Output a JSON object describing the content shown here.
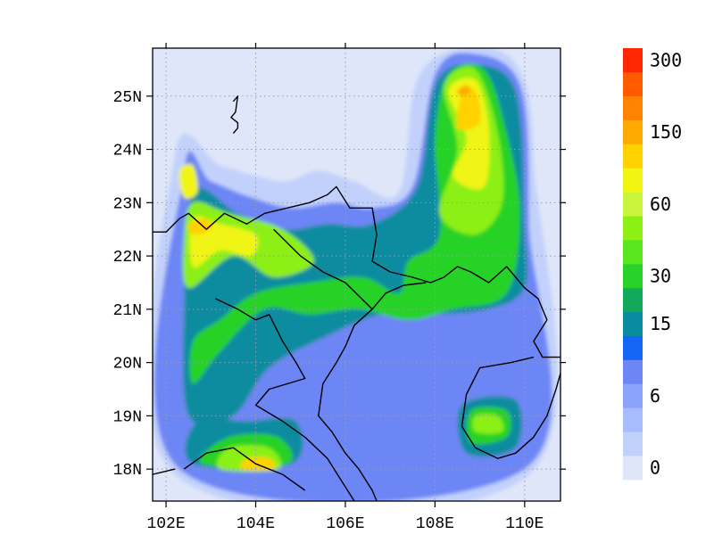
{
  "chart_data": {
    "type": "heatmap",
    "title": "",
    "xlabel": "",
    "ylabel": "",
    "xlim": [
      101.7,
      110.8
    ],
    "ylim": [
      17.4,
      25.9
    ],
    "x_ticks": [
      {
        "value": 102,
        "label": "102E"
      },
      {
        "value": 104,
        "label": "104E"
      },
      {
        "value": 106,
        "label": "106E"
      },
      {
        "value": 108,
        "label": "108E"
      },
      {
        "value": 110,
        "label": "110E"
      }
    ],
    "y_ticks": [
      {
        "value": 18,
        "label": "18N"
      },
      {
        "value": 19,
        "label": "19N"
      },
      {
        "value": 20,
        "label": "20N"
      },
      {
        "value": 21,
        "label": "21N"
      },
      {
        "value": 22,
        "label": "22N"
      },
      {
        "value": 23,
        "label": "23N"
      },
      {
        "value": 24,
        "label": "24N"
      },
      {
        "value": 25,
        "label": "25N"
      }
    ],
    "grid": "dotted",
    "legend": "right",
    "colorbar": {
      "colors": [
        "#dfe6f9",
        "#c2d1fb",
        "#a6bcfc",
        "#8ba4fb",
        "#6d86f5",
        "#1464f5",
        "#0a8ca0",
        "#12aa5a",
        "#28d228",
        "#5ae61e",
        "#8cf014",
        "#c8f53c",
        "#f0f514",
        "#ffd200",
        "#ffaa00",
        "#ff8200",
        "#ff5a00",
        "#ff2800"
      ],
      "labels": [
        {
          "index": 0,
          "text": "0"
        },
        {
          "index": 3,
          "text": "6"
        },
        {
          "index": 6,
          "text": "15"
        },
        {
          "index": 8,
          "text": "30"
        },
        {
          "index": 11,
          "text": "60"
        },
        {
          "index": 14,
          "text": "150"
        },
        {
          "index": 17,
          "text": "300"
        }
      ]
    },
    "background_color": "#dfe6f9",
    "regions": [
      {
        "level": 1,
        "points": [
          [
            102.2,
            17.9
          ],
          [
            110.1,
            17.9
          ],
          [
            110.2,
            23.8
          ],
          [
            109.8,
            25.6
          ],
          [
            108.6,
            25.9
          ],
          [
            107.6,
            25.3
          ],
          [
            107.2,
            23.2
          ],
          [
            106.2,
            23.4
          ],
          [
            105.4,
            23.6
          ],
          [
            104.7,
            23.4
          ],
          [
            104.0,
            23.5
          ],
          [
            103.2,
            23.7
          ],
          [
            102.2,
            23.9
          ]
        ]
      },
      {
        "level": 4,
        "points": [
          [
            102.3,
            18.0
          ],
          [
            110.0,
            18.0
          ],
          [
            110.1,
            22.6
          ],
          [
            109.9,
            25.2
          ],
          [
            108.8,
            25.8
          ],
          [
            108.0,
            25.4
          ],
          [
            107.5,
            23.3
          ],
          [
            106.6,
            22.9
          ],
          [
            105.8,
            23.0
          ],
          [
            104.8,
            22.9
          ],
          [
            103.9,
            23.1
          ],
          [
            103.0,
            23.4
          ],
          [
            102.4,
            23.6
          ]
        ]
      },
      {
        "level": 6,
        "points": [
          [
            102.5,
            19.0
          ],
          [
            103.5,
            19.0
          ],
          [
            104.3,
            19.9
          ],
          [
            105.6,
            20.5
          ],
          [
            106.8,
            20.9
          ],
          [
            107.9,
            20.9
          ],
          [
            109.2,
            21.0
          ],
          [
            110.0,
            21.4
          ],
          [
            110.0,
            22.6
          ],
          [
            109.8,
            25.1
          ],
          [
            108.8,
            25.6
          ],
          [
            108.0,
            25.2
          ],
          [
            107.6,
            23.3
          ],
          [
            106.6,
            22.6
          ],
          [
            105.6,
            22.6
          ],
          [
            104.6,
            22.5
          ],
          [
            103.6,
            22.8
          ],
          [
            102.6,
            23.2
          ],
          [
            102.4,
            21.0
          ]
        ]
      },
      {
        "level": 6,
        "points": [
          [
            102.6,
            18.1
          ],
          [
            104.8,
            18.1
          ],
          [
            104.9,
            18.9
          ],
          [
            103.8,
            18.9
          ],
          [
            102.7,
            18.9
          ]
        ]
      },
      {
        "level": 6,
        "points": [
          [
            108.7,
            18.3
          ],
          [
            109.8,
            18.4
          ],
          [
            109.8,
            19.3
          ],
          [
            108.6,
            19.2
          ]
        ]
      },
      {
        "level": 8,
        "points": [
          [
            102.6,
            20.4
          ],
          [
            103.2,
            20.8
          ],
          [
            104.0,
            21.3
          ],
          [
            105.2,
            21.5
          ],
          [
            106.4,
            21.6
          ],
          [
            107.2,
            21.3
          ],
          [
            107.4,
            21.9
          ],
          [
            108.1,
            22.4
          ],
          [
            108.0,
            24.2
          ],
          [
            108.3,
            25.4
          ],
          [
            109.1,
            25.5
          ],
          [
            109.6,
            24.3
          ],
          [
            109.9,
            22.8
          ],
          [
            109.6,
            21.3
          ],
          [
            108.4,
            21.0
          ],
          [
            107.4,
            20.8
          ],
          [
            106.3,
            21.0
          ],
          [
            105.2,
            20.9
          ],
          [
            104.2,
            21.0
          ],
          [
            103.2,
            20.2
          ],
          [
            102.6,
            19.6
          ]
        ]
      },
      {
        "level": 8,
        "points": [
          [
            102.8,
            18.1
          ],
          [
            104.7,
            18.1
          ],
          [
            104.5,
            18.6
          ],
          [
            103.4,
            18.6
          ]
        ]
      },
      {
        "level": 8,
        "points": [
          [
            108.8,
            18.5
          ],
          [
            109.6,
            18.6
          ],
          [
            109.6,
            19.1
          ],
          [
            108.8,
            19.1
          ]
        ]
      },
      {
        "level": 10,
        "points": [
          [
            102.5,
            21.4
          ],
          [
            103.5,
            22.0
          ],
          [
            104.4,
            21.6
          ],
          [
            105.3,
            21.9
          ],
          [
            104.6,
            22.5
          ],
          [
            103.4,
            22.8
          ],
          [
            102.6,
            23.0
          ],
          [
            102.4,
            22.3
          ]
        ]
      },
      {
        "level": 10,
        "points": [
          [
            108.1,
            22.8
          ],
          [
            108.5,
            24.0
          ],
          [
            108.2,
            25.2
          ],
          [
            108.9,
            25.5
          ],
          [
            109.4,
            24.3
          ],
          [
            109.5,
            23.0
          ],
          [
            108.9,
            22.4
          ]
        ]
      },
      {
        "level": 10,
        "points": [
          [
            103.2,
            18.0
          ],
          [
            104.5,
            18.0
          ],
          [
            104.3,
            18.4
          ],
          [
            103.4,
            18.4
          ]
        ]
      },
      {
        "level": 10,
        "points": [
          [
            108.9,
            18.7
          ],
          [
            109.5,
            18.7
          ],
          [
            109.4,
            19.0
          ],
          [
            108.9,
            19.0
          ]
        ]
      },
      {
        "level": 12,
        "points": [
          [
            102.6,
            21.8
          ],
          [
            103.2,
            22.1
          ],
          [
            103.9,
            22.0
          ],
          [
            104.0,
            22.4
          ],
          [
            103.2,
            22.6
          ],
          [
            102.6,
            22.7
          ]
        ]
      },
      {
        "level": 12,
        "points": [
          [
            108.4,
            23.5
          ],
          [
            108.7,
            24.2
          ],
          [
            108.3,
            25.1
          ],
          [
            108.9,
            25.3
          ],
          [
            109.2,
            24.4
          ],
          [
            109.1,
            23.3
          ]
        ]
      },
      {
        "level": 12,
        "points": [
          [
            102.4,
            23.1
          ],
          [
            102.7,
            23.2
          ],
          [
            102.6,
            23.7
          ],
          [
            102.3,
            23.6
          ]
        ]
      },
      {
        "level": 13,
        "points": [
          [
            108.5,
            24.4
          ],
          [
            108.6,
            25.0
          ],
          [
            108.9,
            25.1
          ],
          [
            109.0,
            24.5
          ]
        ]
      },
      {
        "level": 13,
        "points": [
          [
            102.6,
            22.4
          ],
          [
            103.0,
            22.5
          ],
          [
            102.9,
            22.7
          ],
          [
            102.5,
            22.6
          ]
        ]
      },
      {
        "level": 13,
        "points": [
          [
            103.7,
            18.0
          ],
          [
            104.4,
            18.0
          ],
          [
            104.3,
            18.2
          ],
          [
            103.8,
            18.2
          ]
        ]
      },
      {
        "level": 14,
        "points": [
          [
            108.6,
            25.0
          ],
          [
            108.8,
            25.1
          ],
          [
            108.7,
            25.2
          ],
          [
            108.5,
            25.1
          ]
        ]
      }
    ],
    "coastline_segments": [
      [
        [
          101.7,
          22.45
        ],
        [
          102.0,
          22.45
        ],
        [
          102.3,
          22.7
        ],
        [
          102.5,
          22.8
        ],
        [
          102.9,
          22.5
        ],
        [
          103.3,
          22.8
        ],
        [
          103.8,
          22.6
        ],
        [
          104.2,
          22.8
        ],
        [
          104.7,
          22.9
        ],
        [
          105.2,
          23.0
        ],
        [
          105.6,
          23.15
        ],
        [
          105.8,
          23.3
        ],
        [
          106.1,
          22.9
        ],
        [
          106.6,
          22.9
        ],
        [
          106.7,
          22.4
        ],
        [
          106.6,
          21.9
        ],
        [
          107.0,
          21.7
        ],
        [
          107.5,
          21.6
        ],
        [
          107.9,
          21.5
        ],
        [
          108.2,
          21.6
        ],
        [
          108.5,
          21.8
        ],
        [
          108.8,
          21.7
        ],
        [
          109.2,
          21.5
        ],
        [
          109.6,
          21.8
        ],
        [
          110.0,
          21.4
        ],
        [
          110.3,
          21.2
        ],
        [
          110.5,
          20.8
        ],
        [
          110.2,
          20.4
        ],
        [
          110.4,
          20.1
        ],
        [
          110.8,
          20.1
        ]
      ],
      [
        [
          104.4,
          22.5
        ],
        [
          105.0,
          22.0
        ],
        [
          105.5,
          21.7
        ],
        [
          106.0,
          21.5
        ],
        [
          106.6,
          21.0
        ],
        [
          106.9,
          21.3
        ],
        [
          107.3,
          21.45
        ],
        [
          107.8,
          21.5
        ]
      ],
      [
        [
          106.6,
          21.0
        ],
        [
          106.2,
          20.7
        ],
        [
          106.0,
          20.3
        ],
        [
          105.8,
          20.0
        ],
        [
          105.5,
          19.6
        ],
        [
          105.4,
          19.0
        ],
        [
          105.7,
          18.7
        ],
        [
          106.0,
          18.3
        ],
        [
          106.3,
          18.0
        ],
        [
          106.6,
          17.6
        ],
        [
          106.7,
          17.4
        ]
      ],
      [
        [
          110.2,
          20.1
        ],
        [
          109.7,
          20.0
        ],
        [
          109.0,
          19.9
        ],
        [
          108.7,
          19.4
        ],
        [
          108.6,
          18.8
        ],
        [
          108.9,
          18.4
        ],
        [
          109.4,
          18.2
        ],
        [
          109.8,
          18.3
        ],
        [
          110.2,
          18.6
        ],
        [
          110.5,
          19.0
        ],
        [
          110.7,
          19.5
        ],
        [
          110.8,
          19.8
        ]
      ],
      [
        [
          103.1,
          21.2
        ],
        [
          103.6,
          21.0
        ],
        [
          104.0,
          20.8
        ],
        [
          104.3,
          20.9
        ],
        [
          104.6,
          20.4
        ],
        [
          104.9,
          20.0
        ],
        [
          105.1,
          19.7
        ],
        [
          104.7,
          19.6
        ],
        [
          104.3,
          19.5
        ],
        [
          104.0,
          19.2
        ],
        [
          104.6,
          18.9
        ],
        [
          105.1,
          18.6
        ],
        [
          105.6,
          18.2
        ],
        [
          105.9,
          17.8
        ],
        [
          106.2,
          17.4
        ]
      ],
      [
        [
          102.4,
          18.0
        ],
        [
          102.9,
          18.3
        ],
        [
          103.5,
          18.4
        ],
        [
          104.0,
          18.1
        ],
        [
          104.6,
          17.9
        ],
        [
          105.1,
          17.6
        ]
      ],
      [
        [
          101.7,
          17.9
        ],
        [
          102.2,
          18.0
        ]
      ],
      [
        [
          103.5,
          24.9
        ],
        [
          103.6,
          25.0
        ],
        [
          103.55,
          24.7
        ],
        [
          103.45,
          24.6
        ],
        [
          103.6,
          24.5
        ],
        [
          103.6,
          24.4
        ],
        [
          103.5,
          24.3
        ]
      ]
    ]
  }
}
